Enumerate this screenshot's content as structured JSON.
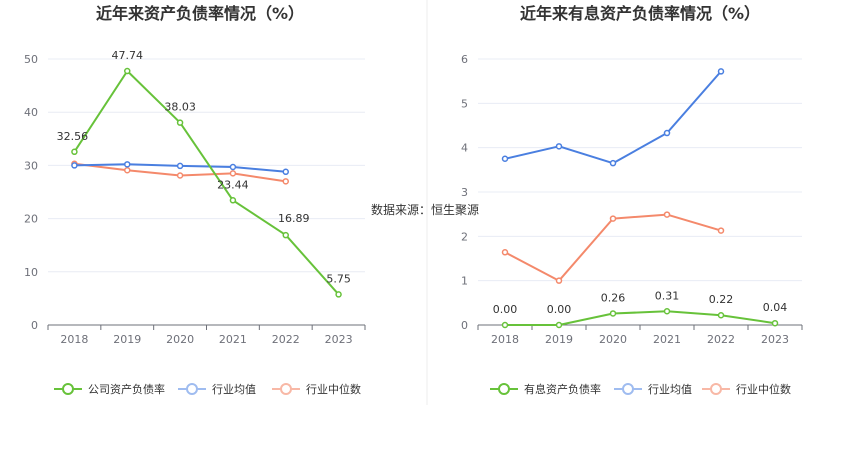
{
  "source_label": "数据来源：恒生聚源",
  "colors": {
    "company": "#67c23a",
    "avg": "#4a7fe0",
    "median": "#f4896b",
    "grid": "#e8ecf4",
    "axis": "#6e7079"
  },
  "chart_data": [
    {
      "type": "line",
      "title": "近年来资产负债率情况（%）",
      "categories": [
        "2018",
        "2019",
        "2020",
        "2021",
        "2022",
        "2023"
      ],
      "ylim": [
        0,
        50
      ],
      "yticks": [
        "0",
        "10",
        "20",
        "30",
        "40",
        "50"
      ],
      "grid": true,
      "legend_position": "bottom",
      "series": [
        {
          "name": "公司资产负债率",
          "color": "#67c23a",
          "values": [
            32.56,
            47.74,
            38.03,
            23.44,
            16.89,
            5.75
          ],
          "labels": [
            "32.56",
            "47.74",
            "38.03",
            "23.44",
            "16.89",
            "5.75"
          ]
        },
        {
          "name": "行业均值",
          "color": "#4a7fe0",
          "values": [
            30.0,
            30.2,
            29.9,
            29.7,
            28.8,
            null
          ]
        },
        {
          "name": "行业中位数",
          "color": "#f4896b",
          "values": [
            30.3,
            29.1,
            28.1,
            28.5,
            27.0,
            null
          ]
        }
      ]
    },
    {
      "type": "line",
      "title": "近年来有息资产负债率情况（%）",
      "categories": [
        "2018",
        "2019",
        "2020",
        "2021",
        "2022",
        "2023"
      ],
      "ylim": [
        0,
        6
      ],
      "yticks": [
        "0",
        "1",
        "2",
        "3",
        "4",
        "5",
        "6"
      ],
      "grid": true,
      "legend_position": "bottom",
      "series": [
        {
          "name": "有息资产负债率",
          "color": "#67c23a",
          "values": [
            0.0,
            0.0,
            0.26,
            0.31,
            0.22,
            0.04
          ],
          "labels": [
            "0.00",
            "0.00",
            "0.26",
            "0.31",
            "0.22",
            "0.04"
          ]
        },
        {
          "name": "行业均值",
          "color": "#4a7fe0",
          "values": [
            3.75,
            4.03,
            3.65,
            4.33,
            5.72,
            null
          ]
        },
        {
          "name": "行业中位数",
          "color": "#f4896b",
          "values": [
            1.64,
            1.0,
            2.4,
            2.49,
            2.13,
            null
          ]
        }
      ]
    }
  ]
}
